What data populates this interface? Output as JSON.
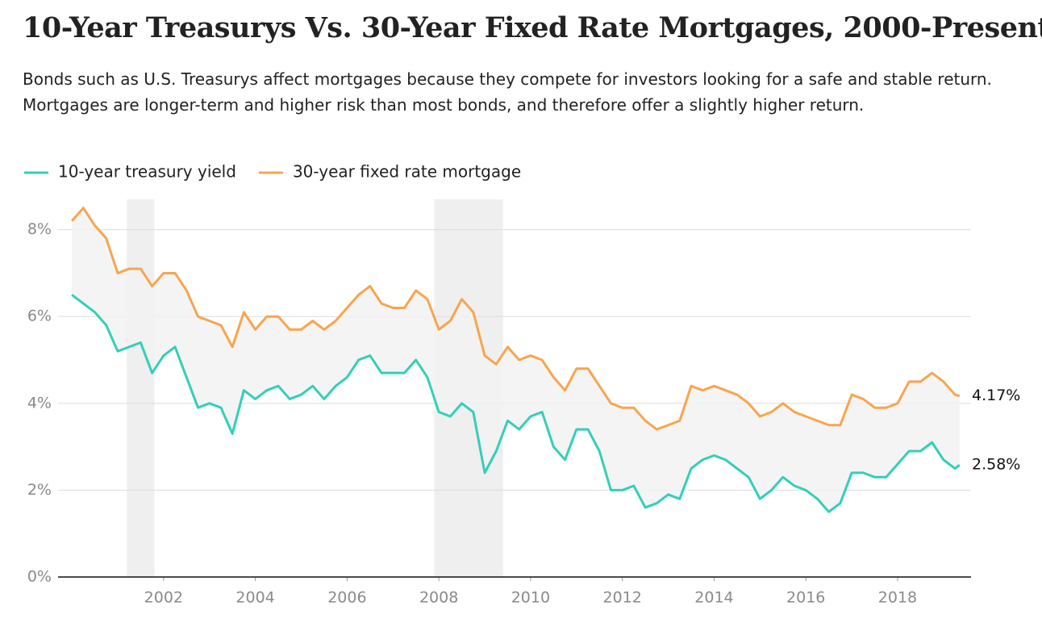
{
  "chart_data": {
    "type": "line",
    "title": "10-Year Treasurys Vs. 30-Year Fixed Rate Mortgages, 2000-Present",
    "subtitle": "Bonds such as U.S. Treasurys affect mortgages because they compete for investors looking for a safe and stable return. Mortgages are longer-term and higher risk than most bonds, and therefore offer a slightly higher return.",
    "x": [
      2000.0,
      2000.25,
      2000.5,
      2000.75,
      2001.0,
      2001.25,
      2001.5,
      2001.75,
      2002.0,
      2002.25,
      2002.5,
      2002.75,
      2003.0,
      2003.25,
      2003.5,
      2003.75,
      2004.0,
      2004.25,
      2004.5,
      2004.75,
      2005.0,
      2005.25,
      2005.5,
      2005.75,
      2006.0,
      2006.25,
      2006.5,
      2006.75,
      2007.0,
      2007.25,
      2007.5,
      2007.75,
      2008.0,
      2008.25,
      2008.5,
      2008.75,
      2009.0,
      2009.25,
      2009.5,
      2009.75,
      2010.0,
      2010.25,
      2010.5,
      2010.75,
      2011.0,
      2011.25,
      2011.5,
      2011.75,
      2012.0,
      2012.25,
      2012.5,
      2012.75,
      2013.0,
      2013.25,
      2013.5,
      2013.75,
      2014.0,
      2014.25,
      2014.5,
      2014.75,
      2015.0,
      2015.25,
      2015.5,
      2015.75,
      2016.0,
      2016.25,
      2016.5,
      2016.75,
      2017.0,
      2017.25,
      2017.5,
      2017.75,
      2018.0,
      2018.25,
      2018.5,
      2018.75,
      2019.0,
      2019.25,
      2019.35
    ],
    "series": [
      {
        "name": "10-year treasury yield",
        "color": "#33cfb8",
        "last_label": "2.58%",
        "values": [
          6.5,
          6.3,
          6.1,
          5.8,
          5.2,
          5.3,
          5.4,
          4.7,
          5.1,
          5.3,
          4.6,
          3.9,
          4.0,
          3.9,
          3.3,
          4.3,
          4.1,
          4.3,
          4.4,
          4.1,
          4.2,
          4.4,
          4.1,
          4.4,
          4.6,
          5.0,
          5.1,
          4.7,
          4.7,
          4.7,
          5.0,
          4.6,
          3.8,
          3.7,
          4.0,
          3.8,
          2.4,
          2.9,
          3.6,
          3.4,
          3.7,
          3.8,
          3.0,
          2.7,
          3.4,
          3.4,
          2.9,
          2.0,
          2.0,
          2.1,
          1.6,
          1.7,
          1.9,
          1.8,
          2.5,
          2.7,
          2.8,
          2.7,
          2.5,
          2.3,
          1.8,
          2.0,
          2.3,
          2.1,
          2.0,
          1.8,
          1.5,
          1.7,
          2.4,
          2.4,
          2.3,
          2.3,
          2.6,
          2.9,
          2.9,
          3.1,
          2.7,
          2.5,
          2.58
        ]
      },
      {
        "name": "30-year fixed rate mortgage",
        "color": "#f8a54e",
        "last_label": "4.17%",
        "values": [
          8.2,
          8.5,
          8.1,
          7.8,
          7.0,
          7.1,
          7.1,
          6.7,
          7.0,
          7.0,
          6.6,
          6.0,
          5.9,
          5.8,
          5.3,
          6.1,
          5.7,
          6.0,
          6.0,
          5.7,
          5.7,
          5.9,
          5.7,
          5.9,
          6.2,
          6.5,
          6.7,
          6.3,
          6.2,
          6.2,
          6.6,
          6.4,
          5.7,
          5.9,
          6.4,
          6.1,
          5.1,
          4.9,
          5.3,
          5.0,
          5.1,
          5.0,
          4.6,
          4.3,
          4.8,
          4.8,
          4.4,
          4.0,
          3.9,
          3.9,
          3.6,
          3.4,
          3.5,
          3.6,
          4.4,
          4.3,
          4.4,
          4.3,
          4.2,
          4.0,
          3.7,
          3.8,
          4.0,
          3.8,
          3.7,
          3.6,
          3.5,
          3.5,
          4.2,
          4.1,
          3.9,
          3.9,
          4.0,
          4.5,
          4.5,
          4.7,
          4.5,
          4.2,
          4.17
        ]
      }
    ],
    "shaded_periods": [
      [
        2001.2,
        2001.8
      ],
      [
        2007.9,
        2009.4
      ]
    ],
    "xlim": [
      1999.7,
      2019.6
    ],
    "xticks": [
      2002,
      2004,
      2006,
      2008,
      2010,
      2012,
      2014,
      2016,
      2018
    ],
    "ylim": [
      0,
      8.7
    ],
    "yticks": [
      {
        "value": 0,
        "label": "0%"
      },
      {
        "value": 2,
        "label": "2%"
      },
      {
        "value": 4,
        "label": "4%"
      },
      {
        "value": 6,
        "label": "6%"
      },
      {
        "value": 8,
        "label": "8%"
      }
    ],
    "grid": true,
    "legend": "top-left"
  }
}
